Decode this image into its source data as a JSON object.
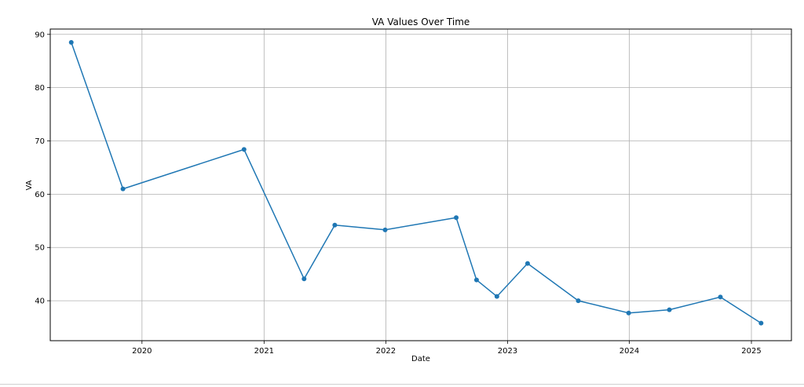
{
  "chart_data": {
    "type": "line",
    "title": "VA Values Over Time",
    "xlabel": "Date",
    "ylabel": "VA",
    "x_type": "date",
    "xlim": [
      "2019-04-01",
      "2025-05-01"
    ],
    "ylim": [
      32.5,
      91.0
    ],
    "x_ticks": [
      {
        "date": "2020-01-01",
        "label": "2020"
      },
      {
        "date": "2021-01-01",
        "label": "2021"
      },
      {
        "date": "2022-01-01",
        "label": "2022"
      },
      {
        "date": "2023-01-01",
        "label": "2023"
      },
      {
        "date": "2024-01-01",
        "label": "2024"
      },
      {
        "date": "2025-01-01",
        "label": "2025"
      }
    ],
    "y_ticks": [
      {
        "value": 40,
        "label": "40"
      },
      {
        "value": 50,
        "label": "50"
      },
      {
        "value": 60,
        "label": "60"
      },
      {
        "value": 70,
        "label": "70"
      },
      {
        "value": 80,
        "label": "80"
      },
      {
        "value": 90,
        "label": "90"
      }
    ],
    "grid": true,
    "series": [
      {
        "name": "",
        "color": "#1f77b4",
        "marker": "circle",
        "points": [
          {
            "x": "2019-06-03",
            "y": 88.5
          },
          {
            "x": "2019-11-05",
            "y": 61.0
          },
          {
            "x": "2020-11-02",
            "y": 68.4
          },
          {
            "x": "2021-05-01",
            "y": 44.1
          },
          {
            "x": "2021-08-01",
            "y": 54.2
          },
          {
            "x": "2021-12-30",
            "y": 53.3
          },
          {
            "x": "2022-07-31",
            "y": 55.6
          },
          {
            "x": "2022-09-30",
            "y": 43.9
          },
          {
            "x": "2022-11-30",
            "y": 40.8
          },
          {
            "x": "2023-03-02",
            "y": 47.0
          },
          {
            "x": "2023-08-01",
            "y": 40.0
          },
          {
            "x": "2023-12-30",
            "y": 37.7
          },
          {
            "x": "2024-04-30",
            "y": 38.3
          },
          {
            "x": "2024-09-30",
            "y": 40.7
          },
          {
            "x": "2025-01-30",
            "y": 35.8
          }
        ]
      }
    ]
  }
}
